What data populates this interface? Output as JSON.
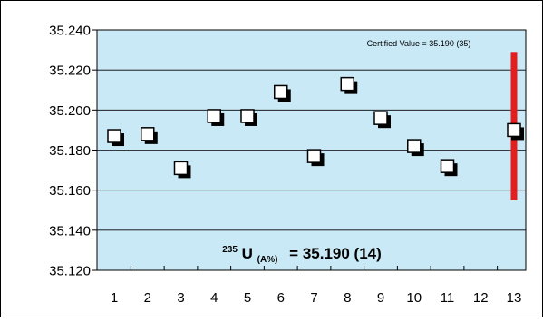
{
  "chart_data": {
    "type": "scatter",
    "title": "",
    "xlabel": "",
    "ylabel": "",
    "x_categories": [
      "1",
      "2",
      "3",
      "4",
      "5",
      "6",
      "7",
      "8",
      "9",
      "10",
      "11",
      "12",
      "13"
    ],
    "y_ticks": [
      "35.120",
      "35.140",
      "35.160",
      "35.180",
      "35.200",
      "35.220",
      "35.240"
    ],
    "ylim": [
      35.12,
      35.24
    ],
    "grid": true,
    "series": [
      {
        "points": [
          {
            "x": 1,
            "y": 35.187
          },
          {
            "x": 2,
            "y": 35.188
          },
          {
            "x": 3,
            "y": 35.171
          },
          {
            "x": 4,
            "y": 35.197
          },
          {
            "x": 5,
            "y": 35.197
          },
          {
            "x": 6,
            "y": 35.209
          },
          {
            "x": 7,
            "y": 35.177
          },
          {
            "x": 8,
            "y": 35.213
          },
          {
            "x": 9,
            "y": 35.196
          },
          {
            "x": 10,
            "y": 35.182
          },
          {
            "x": 11,
            "y": 35.172
          },
          {
            "x": 13,
            "y": 35.19
          }
        ]
      }
    ],
    "certified_range": {
      "x": 13,
      "y_low": 35.155,
      "y_high": 35.229
    },
    "annotations": {
      "certified": "Certified Value = 35.190 (35)",
      "result_sup": "235",
      "result_main": "U",
      "result_sub": "(A%)",
      "result_value": "= 35.190 (14)"
    },
    "colors": {
      "plot_bg": "#c9e9f6",
      "bar": "#e02020",
      "marker_face": "#ffffff",
      "marker_edge": "#000000",
      "marker_shadow": "#000000",
      "gridline": "#000000"
    }
  }
}
